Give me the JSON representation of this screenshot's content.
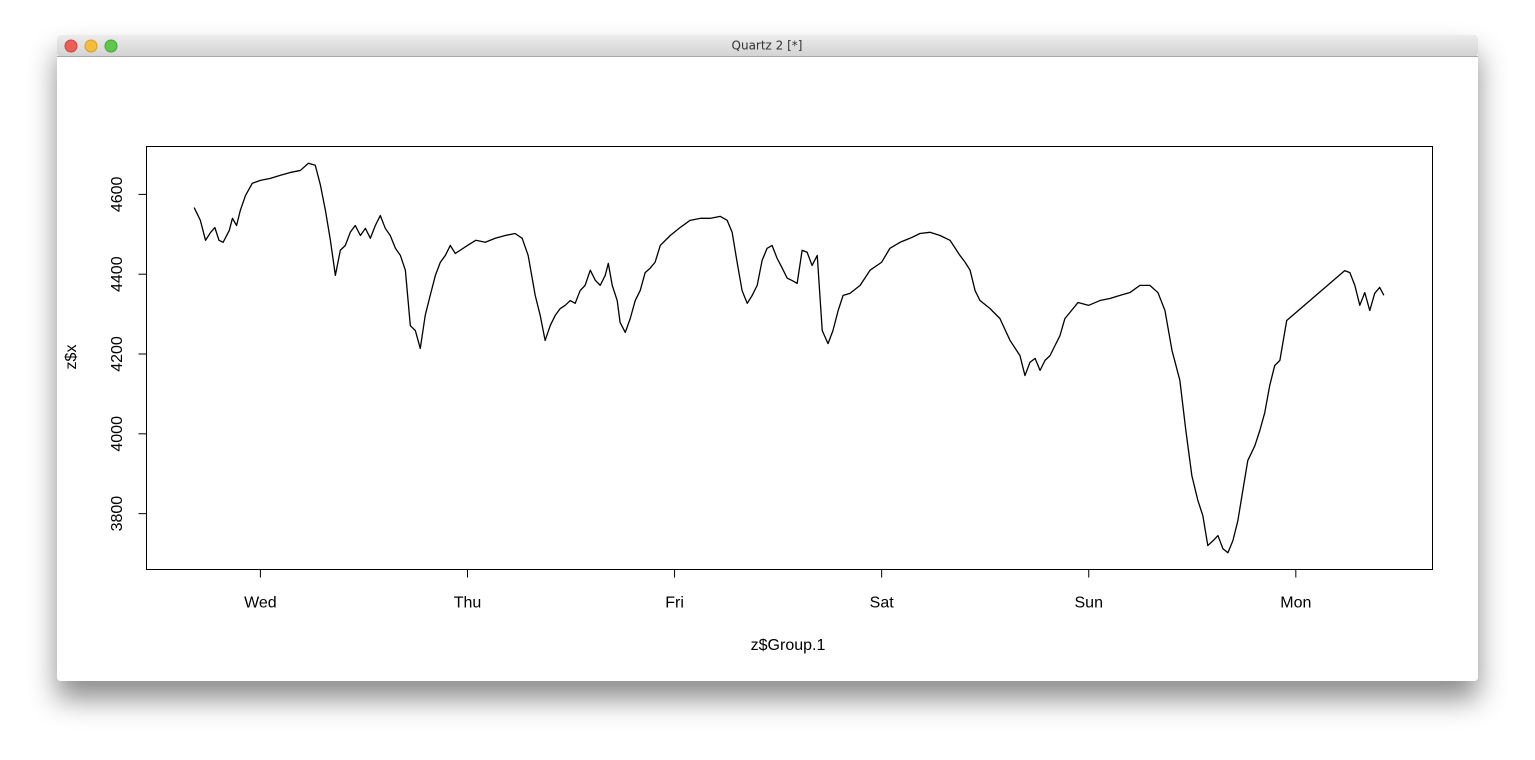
{
  "window": {
    "title": "Quartz 2 [*]"
  },
  "chart_data": {
    "type": "line",
    "xlabel": "z$Group.1",
    "ylabel": "z$x",
    "color": "#000000",
    "xlim": [
      -0.55,
      5.66
    ],
    "xticks": [
      {
        "value": 0,
        "label": "Wed"
      },
      {
        "value": 1,
        "label": "Thu"
      },
      {
        "value": 2,
        "label": "Fri"
      },
      {
        "value": 3,
        "label": "Sat"
      },
      {
        "value": 4,
        "label": "Sun"
      },
      {
        "value": 5,
        "label": "Mon"
      }
    ],
    "ylim": [
      3660,
      4720
    ],
    "yticks": [
      3800,
      4000,
      4200,
      4400,
      4600
    ],
    "grid": false,
    "x": [
      -0.32,
      -0.29,
      -0.265,
      -0.24,
      -0.22,
      -0.2,
      -0.18,
      -0.15,
      -0.135,
      -0.115,
      -0.097,
      -0.072,
      -0.039,
      0,
      0.048,
      0.097,
      0.145,
      0.193,
      0.232,
      0.265,
      0.29,
      0.314,
      0.338,
      0.362,
      0.386,
      0.41,
      0.434,
      0.458,
      0.483,
      0.507,
      0.531,
      0.555,
      0.579,
      0.603,
      0.627,
      0.652,
      0.676,
      0.7,
      0.724,
      0.748,
      0.772,
      0.796,
      0.82,
      0.845,
      0.869,
      0.893,
      0.917,
      0.941,
      0.965,
      1.0,
      1.04,
      1.086,
      1.134,
      1.182,
      1.23,
      1.264,
      1.293,
      1.327,
      1.351,
      1.375,
      1.4,
      1.424,
      1.448,
      1.472,
      1.496,
      1.52,
      1.544,
      1.568,
      1.593,
      1.617,
      1.641,
      1.665,
      1.68,
      1.699,
      1.723,
      1.737,
      1.762,
      1.786,
      1.81,
      1.834,
      1.858,
      1.882,
      1.906,
      1.931,
      1.979,
      2.027,
      2.075,
      2.124,
      2.172,
      2.22,
      2.254,
      2.278,
      2.302,
      2.326,
      2.351,
      2.375,
      2.399,
      2.423,
      2.447,
      2.471,
      2.495,
      2.52,
      2.544,
      2.568,
      2.592,
      2.616,
      2.64,
      2.664,
      2.689,
      2.713,
      2.741,
      2.765,
      2.79,
      2.814,
      2.847,
      2.896,
      2.944,
      3.0,
      3.04,
      3.089,
      3.137,
      3.185,
      3.233,
      3.282,
      3.33,
      3.378,
      3.403,
      3.427,
      3.451,
      3.475,
      3.523,
      3.571,
      3.62,
      3.668,
      3.692,
      3.716,
      3.741,
      3.765,
      3.789,
      3.813,
      3.837,
      3.861,
      3.885,
      3.909,
      3.948,
      4.0,
      4.054,
      4.102,
      4.151,
      4.199,
      4.247,
      4.295,
      4.334,
      4.368,
      4.402,
      4.44,
      4.469,
      4.498,
      4.527,
      4.551,
      4.575,
      4.6,
      4.624,
      4.648,
      4.672,
      4.696,
      4.72,
      4.744,
      4.768,
      4.802,
      4.826,
      4.85,
      4.874,
      4.898,
      4.923,
      4.956,
      5.236,
      5.261,
      5.285,
      5.309,
      5.333,
      5.357,
      5.381,
      5.405,
      5.425
    ],
    "values": [
      4567,
      4535,
      4485,
      4505,
      4517,
      4485,
      4480,
      4510,
      4540,
      4522,
      4560,
      4597,
      4628,
      4635,
      4640,
      4648,
      4655,
      4660,
      4678,
      4673,
      4623,
      4560,
      4485,
      4397,
      4460,
      4472,
      4505,
      4522,
      4497,
      4515,
      4490,
      4522,
      4547,
      4515,
      4497,
      4465,
      4447,
      4410,
      4271,
      4259,
      4214,
      4297,
      4347,
      4397,
      4430,
      4447,
      4472,
      4452,
      4460,
      4472,
      4485,
      4480,
      4490,
      4497,
      4502,
      4490,
      4447,
      4347,
      4297,
      4234,
      4272,
      4297,
      4314,
      4322,
      4334,
      4327,
      4359,
      4372,
      4410,
      4385,
      4372,
      4397,
      4427,
      4372,
      4334,
      4279,
      4254,
      4289,
      4334,
      4359,
      4404,
      4415,
      4430,
      4472,
      4497,
      4517,
      4535,
      4540,
      4540,
      4545,
      4535,
      4505,
      4430,
      4359,
      4327,
      4347,
      4372,
      4435,
      4465,
      4472,
      4440,
      4415,
      4390,
      4384,
      4377,
      4460,
      4455,
      4422,
      4447,
      4259,
      4226,
      4259,
      4309,
      4347,
      4352,
      4372,
      4410,
      4430,
      4465,
      4480,
      4490,
      4502,
      4505,
      4497,
      4485,
      4447,
      4430,
      4410,
      4359,
      4334,
      4314,
      4289,
      4234,
      4196,
      4146,
      4179,
      4189,
      4159,
      4184,
      4196,
      4221,
      4246,
      4289,
      4304,
      4329,
      4322,
      4334,
      4339,
      4347,
      4354,
      4372,
      4372,
      4354,
      4309,
      4209,
      4134,
      4008,
      3895,
      3833,
      3795,
      3720,
      3732,
      3745,
      3712,
      3702,
      3732,
      3782,
      3858,
      3933,
      3970,
      4008,
      4053,
      4121,
      4171,
      4184,
      4284,
      4409,
      4404,
      4372,
      4322,
      4354,
      4309,
      4352,
      4367,
      4347
    ]
  }
}
